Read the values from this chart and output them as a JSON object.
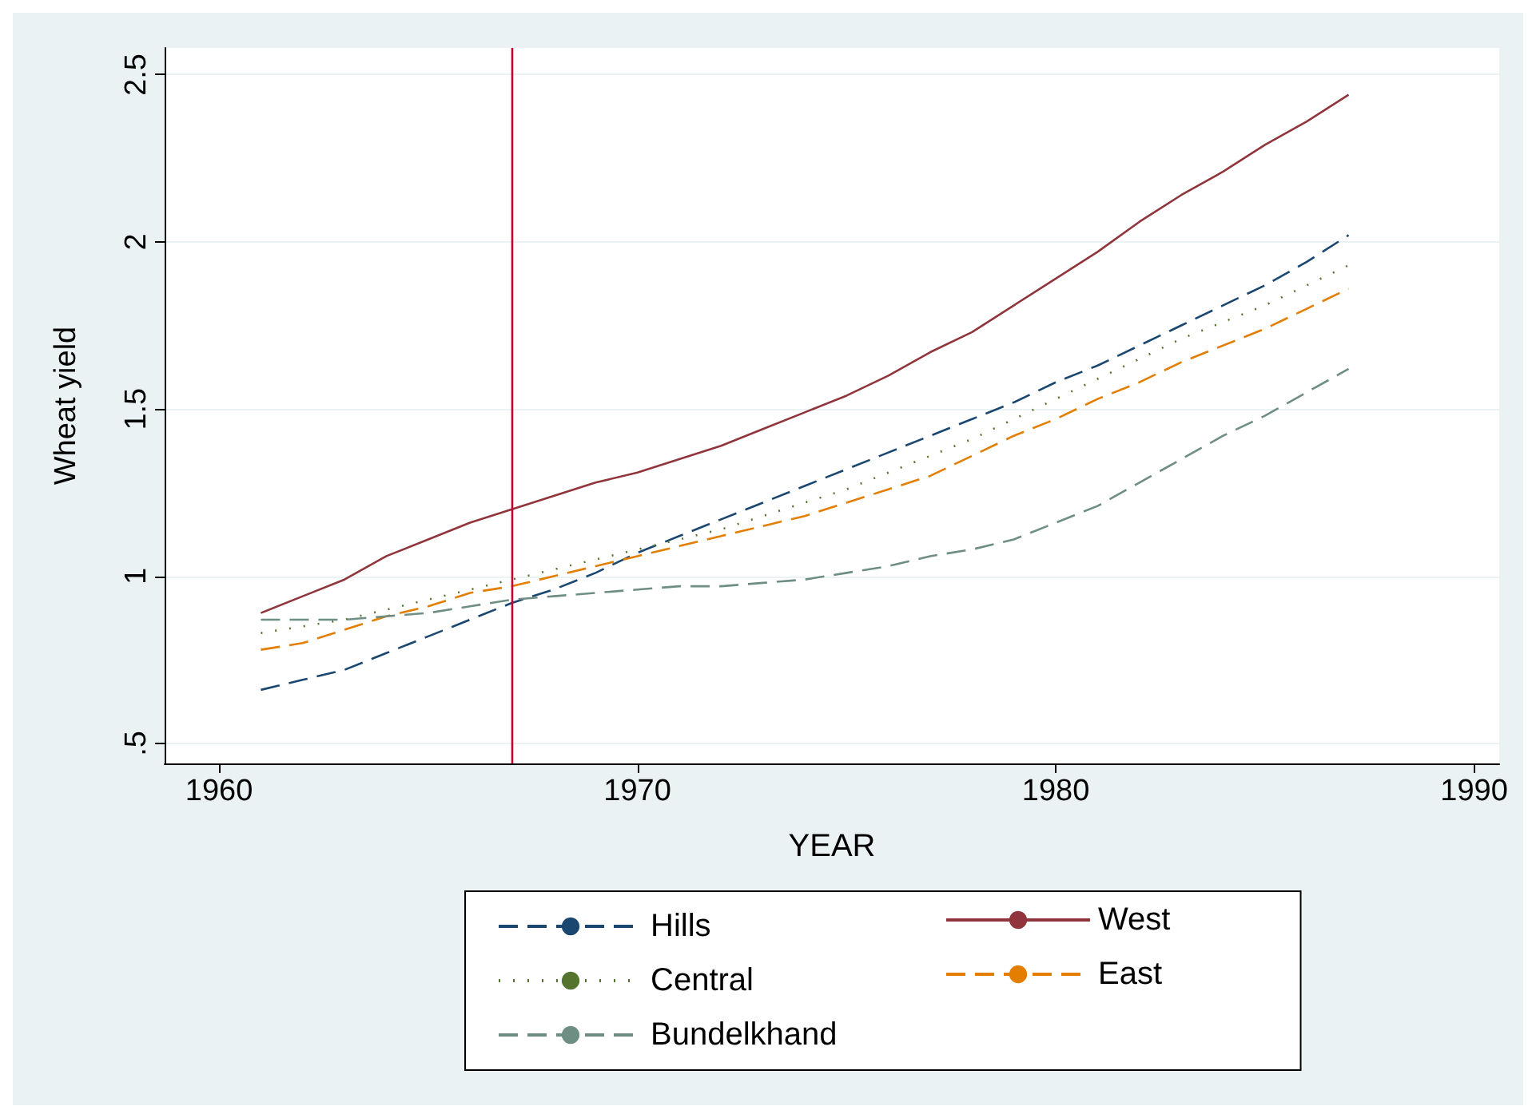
{
  "chart_data": {
    "type": "line",
    "xlabel": "YEAR",
    "ylabel": "Wheat yield",
    "x": [
      1961,
      1962,
      1963,
      1964,
      1965,
      1966,
      1967,
      1968,
      1969,
      1970,
      1971,
      1972,
      1973,
      1974,
      1975,
      1976,
      1977,
      1978,
      1979,
      1980,
      1981,
      1982,
      1983,
      1984,
      1985,
      1986,
      1987
    ],
    "series": [
      {
        "name": "Hills",
        "color": "#1a476f",
        "line_style": "dashed",
        "values": [
          0.66,
          0.69,
          0.72,
          0.77,
          0.82,
          0.87,
          0.92,
          0.96,
          1.01,
          1.07,
          1.12,
          1.17,
          1.22,
          1.27,
          1.32,
          1.37,
          1.42,
          1.47,
          1.52,
          1.58,
          1.63,
          1.69,
          1.75,
          1.81,
          1.87,
          1.94,
          2.02
        ]
      },
      {
        "name": "West",
        "color": "#90353b",
        "line_style": "solid",
        "values": [
          0.89,
          0.94,
          0.99,
          1.06,
          1.11,
          1.16,
          1.2,
          1.24,
          1.28,
          1.31,
          1.35,
          1.39,
          1.44,
          1.49,
          1.54,
          1.6,
          1.67,
          1.73,
          1.81,
          1.89,
          1.97,
          2.06,
          2.14,
          2.21,
          2.29,
          2.36,
          2.44
        ]
      },
      {
        "name": "Central",
        "color": "#55752f",
        "line_style": "dotted",
        "values": [
          0.83,
          0.85,
          0.87,
          0.9,
          0.93,
          0.96,
          0.99,
          1.02,
          1.05,
          1.08,
          1.11,
          1.14,
          1.18,
          1.22,
          1.26,
          1.31,
          1.36,
          1.41,
          1.47,
          1.53,
          1.59,
          1.65,
          1.71,
          1.76,
          1.81,
          1.87,
          1.93
        ]
      },
      {
        "name": "East",
        "color": "#e37e00",
        "line_style": "dashed",
        "values": [
          0.78,
          0.8,
          0.84,
          0.88,
          0.91,
          0.95,
          0.97,
          1.0,
          1.03,
          1.06,
          1.09,
          1.12,
          1.15,
          1.18,
          1.22,
          1.26,
          1.3,
          1.36,
          1.42,
          1.47,
          1.53,
          1.58,
          1.64,
          1.69,
          1.74,
          1.8,
          1.86
        ]
      },
      {
        "name": "Bundelkhand",
        "color": "#6e8e84",
        "line_style": "dashed",
        "values": [
          0.87,
          0.87,
          0.87,
          0.88,
          0.89,
          0.91,
          0.93,
          0.94,
          0.95,
          0.96,
          0.97,
          0.97,
          0.98,
          0.99,
          1.01,
          1.03,
          1.06,
          1.08,
          1.11,
          1.16,
          1.21,
          1.28,
          1.35,
          1.42,
          1.48,
          1.55,
          1.62
        ]
      }
    ],
    "xlim": [
      1958.7,
      1990.6
    ],
    "xticks": [
      1960,
      1970,
      1980,
      1990
    ],
    "ylim": [
      0.44,
      2.58
    ],
    "yticks": [
      {
        "value": 0.5,
        "label": ".5"
      },
      1,
      1.5,
      2,
      2.5
    ],
    "ref_lines": [
      {
        "axis": "x",
        "value": 1967,
        "color": "#c10534"
      }
    ],
    "grid": "y",
    "legend": "bottom",
    "marker": "none"
  }
}
